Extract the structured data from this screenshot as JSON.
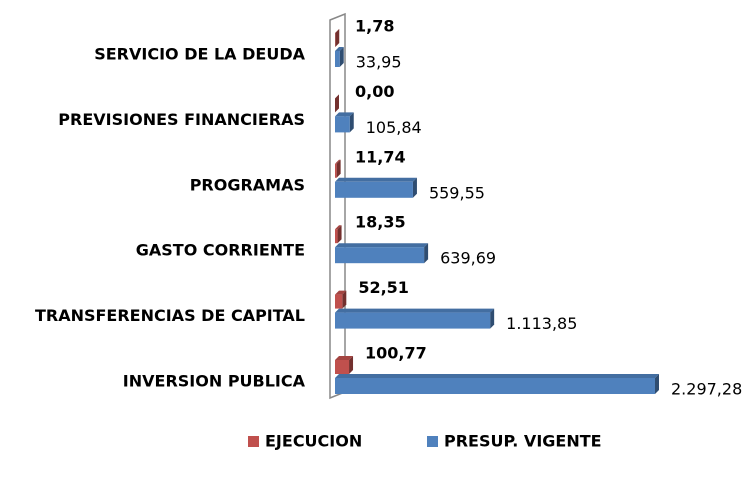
{
  "chart_data": {
    "type": "bar",
    "orientation": "horizontal",
    "categories": [
      "SERVICIO DE LA DEUDA",
      "PREVISIONES FINANCIERAS",
      "PROGRAMAS",
      "GASTO CORRIENTE",
      "TRANSFERENCIAS DE CAPITAL",
      "INVERSION PUBLICA"
    ],
    "series": [
      {
        "name": "EJECUCION",
        "color": "#c0504d",
        "values": [
          1.78,
          0.0,
          11.74,
          18.35,
          52.51,
          100.77
        ],
        "value_labels": [
          "1,78",
          "0,00",
          "11,74",
          "18,35",
          "52,51",
          "100,77"
        ]
      },
      {
        "name": "PRESUP. VIGENTE",
        "color": "#4f81bd",
        "values": [
          33.95,
          105.84,
          559.55,
          639.69,
          1113.85,
          2297.28
        ],
        "value_labels": [
          "33,95",
          "105,84",
          "559,55",
          "639,69",
          "1.113,85",
          "2.297,28"
        ]
      }
    ],
    "legend": "bottom"
  }
}
